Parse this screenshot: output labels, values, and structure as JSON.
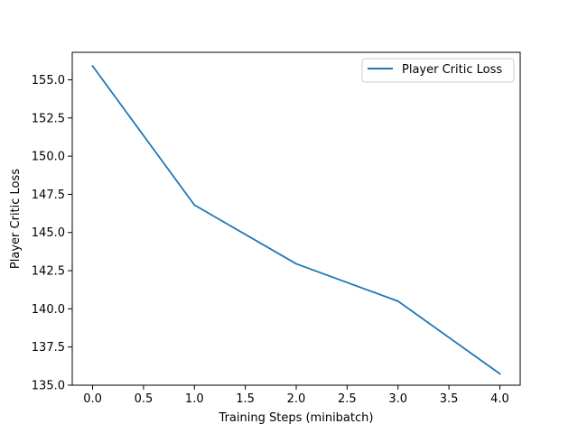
{
  "chart_data": {
    "type": "line",
    "title": "",
    "xlabel": "Training Steps (minibatch)",
    "ylabel": "Player Critic Loss",
    "xlim": [
      -0.2,
      4.2
    ],
    "ylim": [
      135.0,
      156.8
    ],
    "x_ticks": [
      0.0,
      0.5,
      1.0,
      1.5,
      2.0,
      2.5,
      3.0,
      3.5,
      4.0
    ],
    "x_tick_labels": [
      "0.0",
      "0.5",
      "1.0",
      "1.5",
      "2.0",
      "2.5",
      "3.0",
      "3.5",
      "4.0"
    ],
    "y_ticks": [
      135.0,
      137.5,
      140.0,
      142.5,
      145.0,
      147.5,
      150.0,
      152.5,
      155.0
    ],
    "y_tick_labels": [
      "135.0",
      "137.5",
      "140.0",
      "142.5",
      "145.0",
      "147.5",
      "150.0",
      "152.5",
      "155.0"
    ],
    "grid": false,
    "legend_position": "top-right",
    "series": [
      {
        "name": "Player Critic Loss",
        "color": "#1f77b4",
        "x": [
          0,
          1,
          2,
          3,
          4
        ],
        "y": [
          155.9,
          146.8,
          142.95,
          140.5,
          135.75
        ]
      }
    ]
  }
}
